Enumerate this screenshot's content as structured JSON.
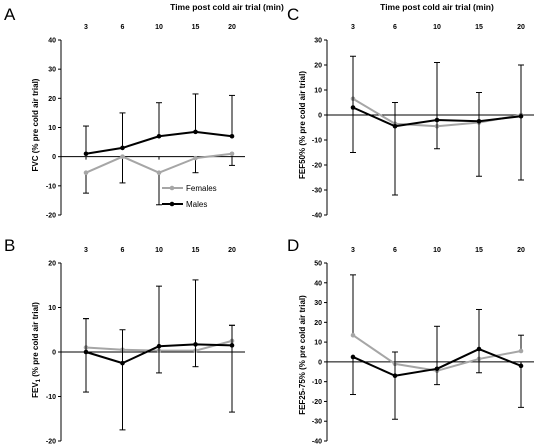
{
  "chart_data": [
    {
      "panel": "A",
      "type": "line",
      "title": "Time post cold air trial (min)",
      "ylabel": "FVC (% pre cold air trial)",
      "categories": [
        "3",
        "6",
        "10",
        "15",
        "20"
      ],
      "ylim": [
        -20,
        40
      ],
      "yticks": [
        -20,
        -10,
        0,
        10,
        20,
        30,
        40
      ],
      "legend": "bottom-right",
      "series": [
        {
          "name": "Females",
          "color": "#a6a6a6",
          "values": [
            -5.5,
            0,
            -5.5,
            -0.5,
            1
          ],
          "err_up": [
            0,
            0,
            0,
            0,
            0
          ],
          "err_down": [
            7,
            9,
            11,
            5,
            4
          ]
        },
        {
          "name": "Males",
          "color": "#000000",
          "values": [
            1,
            3,
            7,
            8.5,
            7
          ],
          "err_up": [
            9.5,
            12,
            11.5,
            13,
            14
          ],
          "err_down": [
            0,
            0,
            0,
            0,
            0
          ]
        }
      ]
    },
    {
      "panel": "B",
      "type": "line",
      "title": "",
      "ylabel_main": "FEV",
      "ylabel_sub": "1",
      "ylabel_rest": " (% pre cold air trial)",
      "categories": [
        "3",
        "6",
        "10",
        "15",
        "20"
      ],
      "ylim": [
        -20,
        20
      ],
      "yticks": [
        -20,
        -10,
        0,
        10,
        20
      ],
      "series": [
        {
          "name": "Females",
          "color": "#a6a6a6",
          "values": [
            1,
            0.5,
            0.3,
            0.3,
            2.5
          ],
          "err_up": [
            6.5,
            0,
            0,
            0,
            3.5
          ],
          "err_down": [
            0,
            0,
            0,
            0,
            0
          ]
        },
        {
          "name": "Males",
          "color": "#000000",
          "values": [
            0,
            -2.5,
            1.3,
            1.7,
            1.5
          ],
          "err_up": [
            7.5,
            7.5,
            13.5,
            14.5,
            4.5
          ],
          "err_down": [
            9,
            15,
            6,
            5,
            15
          ]
        }
      ]
    },
    {
      "panel": "C",
      "type": "line",
      "title": "Time post cold air trial (min)",
      "ylabel": "FEF50% (% pre cold air trial)",
      "categories": [
        "3",
        "6",
        "10",
        "15",
        "20"
      ],
      "ylim": [
        -40,
        30
      ],
      "yticks": [
        -40,
        -30,
        -20,
        -10,
        0,
        10,
        20,
        30
      ],
      "series": [
        {
          "name": "Females",
          "color": "#a6a6a6",
          "values": [
            6.5,
            -3.5,
            -4.5,
            -3,
            0
          ],
          "err_up": [
            0,
            0,
            0,
            0,
            0
          ],
          "err_down": [
            0,
            0,
            0,
            0,
            0
          ]
        },
        {
          "name": "Males",
          "color": "#000000",
          "values": [
            3,
            -4.5,
            -2,
            -2.5,
            -0.5
          ],
          "err_up": [
            20.5,
            9.5,
            23,
            11.5,
            20.5
          ],
          "err_down": [
            18,
            27.5,
            11.5,
            22,
            25.5
          ]
        }
      ]
    },
    {
      "panel": "D",
      "type": "line",
      "title": "",
      "ylabel": "FEF25-75% (% pre cold air trial)",
      "categories": [
        "3",
        "6",
        "10",
        "15",
        "20"
      ],
      "ylim": [
        -40,
        50
      ],
      "yticks": [
        -40,
        -30,
        -20,
        -10,
        0,
        10,
        20,
        30,
        40,
        50
      ],
      "series": [
        {
          "name": "Females",
          "color": "#a6a6a6",
          "values": [
            13.5,
            -1,
            -4.5,
            1.5,
            5.5
          ],
          "err_up": [
            30.5,
            0,
            0,
            0,
            8
          ],
          "err_down": [
            0,
            0,
            0,
            0,
            0
          ]
        },
        {
          "name": "Males",
          "color": "#000000",
          "values": [
            2.5,
            -7,
            -3.5,
            6.5,
            -2
          ],
          "err_up": [
            0,
            12,
            21.5,
            20,
            0
          ],
          "err_down": [
            19,
            22,
            8,
            12,
            21
          ]
        }
      ]
    }
  ]
}
